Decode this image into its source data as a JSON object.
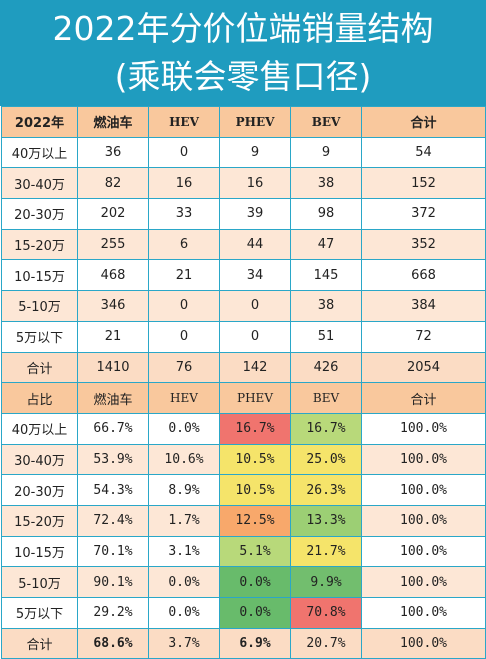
{
  "title": {
    "line1": "2022年分价位端销量结构",
    "line2": "(乘联会零售口径)"
  },
  "colors": {
    "title_bg": "#1f9cbf",
    "header_bg": "#f9c89d",
    "red": "#f0746e",
    "orange": "#f8a86b",
    "yellow": "#f5e46a",
    "light_green": "#b8d97a",
    "green": "#68bb6b"
  },
  "volume": {
    "headers": [
      "2022年",
      "燃油车",
      "HEV",
      "PHEV",
      "BEV",
      "合计"
    ],
    "rows": [
      [
        "40万以上",
        "36",
        "0",
        "9",
        "9",
        "54"
      ],
      [
        "30-40万",
        "82",
        "16",
        "16",
        "38",
        "152"
      ],
      [
        "20-30万",
        "202",
        "33",
        "39",
        "98",
        "372"
      ],
      [
        "15-20万",
        "255",
        "6",
        "44",
        "47",
        "352"
      ],
      [
        "10-15万",
        "468",
        "21",
        "34",
        "145",
        "668"
      ],
      [
        "5-10万",
        "346",
        "0",
        "0",
        "38",
        "384"
      ],
      [
        "5万以下",
        "21",
        "0",
        "0",
        "51",
        "72"
      ]
    ],
    "total": [
      "合计",
      "1410",
      "76",
      "142",
      "426",
      "2054"
    ]
  },
  "share": {
    "headers": [
      "占比",
      "燃油车",
      "HEV",
      "PHEV",
      "BEV",
      "合计"
    ],
    "rows": [
      [
        "40万以上",
        "66.7%",
        "0.0%",
        "16.7%",
        "16.7%",
        "100.0%"
      ],
      [
        "30-40万",
        "53.9%",
        "10.6%",
        "10.5%",
        "25.0%",
        "100.0%"
      ],
      [
        "20-30万",
        "54.3%",
        "8.9%",
        "10.5%",
        "26.3%",
        "100.0%"
      ],
      [
        "15-20万",
        "72.4%",
        "1.7%",
        "12.5%",
        "13.3%",
        "100.0%"
      ],
      [
        "10-15万",
        "70.1%",
        "3.1%",
        "5.1%",
        "21.7%",
        "100.0%"
      ],
      [
        "5-10万",
        "90.1%",
        "0.0%",
        "0.0%",
        "9.9%",
        "100.0%"
      ],
      [
        "5万以下",
        "29.2%",
        "0.0%",
        "0.0%",
        "70.8%",
        "100.0%"
      ]
    ],
    "total": [
      "合计",
      "68.6%",
      "3.7%",
      "6.9%",
      "20.7%",
      "100.0%"
    ],
    "phev_colors": [
      "#f0746e",
      "#f5e46a",
      "#f5e46a",
      "#f8a86b",
      "#b8d97a",
      "#68bb6b",
      "#68bb6b"
    ],
    "bev_colors": [
      "#b8d97a",
      "#f5e46a",
      "#f5e46a",
      "#9ccf74",
      "#f5e46a",
      "#72be6e",
      "#f0746e"
    ]
  }
}
